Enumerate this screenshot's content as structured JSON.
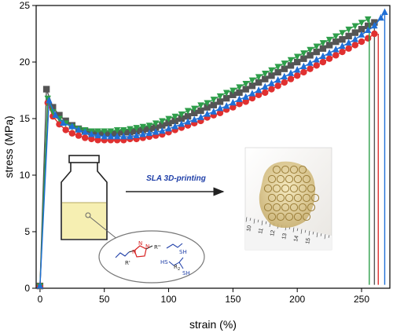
{
  "chart_data": {
    "type": "scatter",
    "xlabel": "strain (%)",
    "ylabel": "stress (MPa)",
    "xlim": [
      -3,
      272
    ],
    "ylim": [
      0,
      25
    ],
    "xticks": [
      0,
      50,
      100,
      150,
      200,
      250
    ],
    "yticks": [
      0,
      5,
      10,
      15,
      20,
      25
    ],
    "series": [
      {
        "color": "#555555",
        "marker": "square",
        "x": [
          0,
          5,
          10,
          15,
          20,
          25,
          30,
          35,
          40,
          45,
          50,
          55,
          60,
          65,
          70,
          75,
          80,
          85,
          90,
          95,
          100,
          105,
          110,
          115,
          120,
          125,
          130,
          135,
          140,
          145,
          150,
          155,
          160,
          165,
          170,
          175,
          180,
          185,
          190,
          195,
          200,
          205,
          210,
          215,
          220,
          225,
          230,
          235,
          240,
          245,
          250,
          255,
          260
        ],
        "y": [
          0.2,
          17.6,
          16.0,
          15.3,
          14.8,
          14.4,
          14.1,
          13.9,
          13.8,
          13.7,
          13.7,
          13.7,
          13.7,
          13.8,
          13.8,
          13.9,
          14.0,
          14.1,
          14.2,
          14.4,
          14.6,
          14.8,
          15.0,
          15.2,
          15.5,
          15.7,
          16.0,
          16.2,
          16.5,
          16.8,
          17.1,
          17.3,
          17.6,
          17.9,
          18.2,
          18.5,
          18.8,
          19.1,
          19.4,
          19.7,
          20.0,
          20.3,
          20.6,
          20.9,
          21.2,
          21.5,
          21.8,
          22.0,
          22.3,
          22.6,
          22.9,
          23.2,
          23.5
        ],
        "break_at": 260
      },
      {
        "color": "#e03030",
        "marker": "circle",
        "x": [
          0,
          6,
          10,
          15,
          20,
          25,
          30,
          35,
          40,
          45,
          50,
          55,
          60,
          65,
          70,
          75,
          80,
          85,
          90,
          95,
          100,
          105,
          110,
          115,
          120,
          125,
          130,
          135,
          140,
          145,
          150,
          155,
          160,
          165,
          170,
          175,
          180,
          185,
          190,
          195,
          200,
          205,
          210,
          215,
          220,
          225,
          230,
          235,
          240,
          245,
          250,
          255,
          260
        ],
        "y": [
          0.2,
          16.4,
          15.2,
          14.5,
          14.0,
          13.7,
          13.5,
          13.3,
          13.2,
          13.1,
          13.1,
          13.1,
          13.1,
          13.1,
          13.2,
          13.2,
          13.3,
          13.4,
          13.5,
          13.6,
          13.8,
          14.0,
          14.2,
          14.4,
          14.6,
          14.8,
          15.1,
          15.3,
          15.5,
          15.8,
          16.0,
          16.3,
          16.5,
          16.8,
          17.1,
          17.3,
          17.6,
          17.9,
          18.2,
          18.5,
          18.8,
          19.1,
          19.4,
          19.7,
          20.0,
          20.3,
          20.6,
          20.9,
          21.2,
          21.5,
          21.8,
          22.1,
          22.5
        ],
        "break_at": 263
      },
      {
        "color": "#2e9e4a",
        "marker": "triangle-down",
        "x": [
          0,
          6,
          10,
          15,
          20,
          25,
          30,
          35,
          40,
          45,
          50,
          55,
          60,
          65,
          70,
          75,
          80,
          85,
          90,
          95,
          100,
          105,
          110,
          115,
          120,
          125,
          130,
          135,
          140,
          145,
          150,
          155,
          160,
          165,
          170,
          175,
          180,
          185,
          190,
          195,
          200,
          205,
          210,
          215,
          220,
          225,
          230,
          235,
          240,
          245,
          250,
          255
        ],
        "y": [
          0.2,
          16.8,
          15.6,
          15.0,
          14.6,
          14.3,
          14.1,
          14.0,
          13.9,
          13.9,
          13.9,
          13.9,
          14.0,
          14.0,
          14.1,
          14.2,
          14.3,
          14.4,
          14.6,
          14.8,
          15.0,
          15.2,
          15.4,
          15.7,
          15.9,
          16.2,
          16.4,
          16.7,
          17.0,
          17.3,
          17.5,
          17.8,
          18.1,
          18.4,
          18.7,
          19.0,
          19.3,
          19.6,
          19.9,
          20.2,
          20.5,
          20.8,
          21.1,
          21.4,
          21.7,
          22.0,
          22.3,
          22.6,
          22.9,
          23.2,
          23.5,
          23.8
        ],
        "break_at": 256
      },
      {
        "color": "#1f6fd6",
        "marker": "triangle-up",
        "x": [
          0,
          7,
          12,
          18,
          25,
          30,
          35,
          40,
          45,
          50,
          55,
          60,
          65,
          70,
          75,
          80,
          85,
          90,
          95,
          100,
          105,
          110,
          115,
          120,
          125,
          130,
          135,
          140,
          145,
          150,
          155,
          160,
          165,
          170,
          175,
          180,
          185,
          190,
          195,
          200,
          205,
          210,
          215,
          220,
          225,
          230,
          235,
          240,
          245,
          250,
          255,
          260,
          265,
          268
        ],
        "y": [
          0.2,
          16.6,
          15.3,
          14.6,
          14.3,
          14.0,
          13.8,
          13.6,
          13.5,
          13.4,
          13.4,
          13.4,
          13.4,
          13.4,
          13.5,
          13.6,
          13.7,
          13.8,
          13.9,
          14.1,
          14.3,
          14.5,
          14.7,
          14.9,
          15.1,
          15.4,
          15.6,
          15.9,
          16.1,
          16.4,
          16.7,
          16.9,
          17.2,
          17.5,
          17.8,
          18.1,
          18.4,
          18.7,
          19.0,
          19.3,
          19.6,
          19.9,
          20.2,
          20.5,
          20.8,
          21.1,
          21.4,
          21.7,
          22.0,
          22.4,
          22.8,
          23.2,
          23.9,
          24.4
        ],
        "break_at": 268
      }
    ],
    "inset": {
      "arrow_label": "SLA 3D-printing",
      "chem_labels": [
        "R'",
        "R''",
        "N",
        "N",
        "N",
        "SH",
        "HS",
        "R",
        "2",
        "SH"
      ],
      "ruler_numbers": [
        "10",
        "11",
        "12",
        "13",
        "14",
        "15"
      ]
    }
  }
}
